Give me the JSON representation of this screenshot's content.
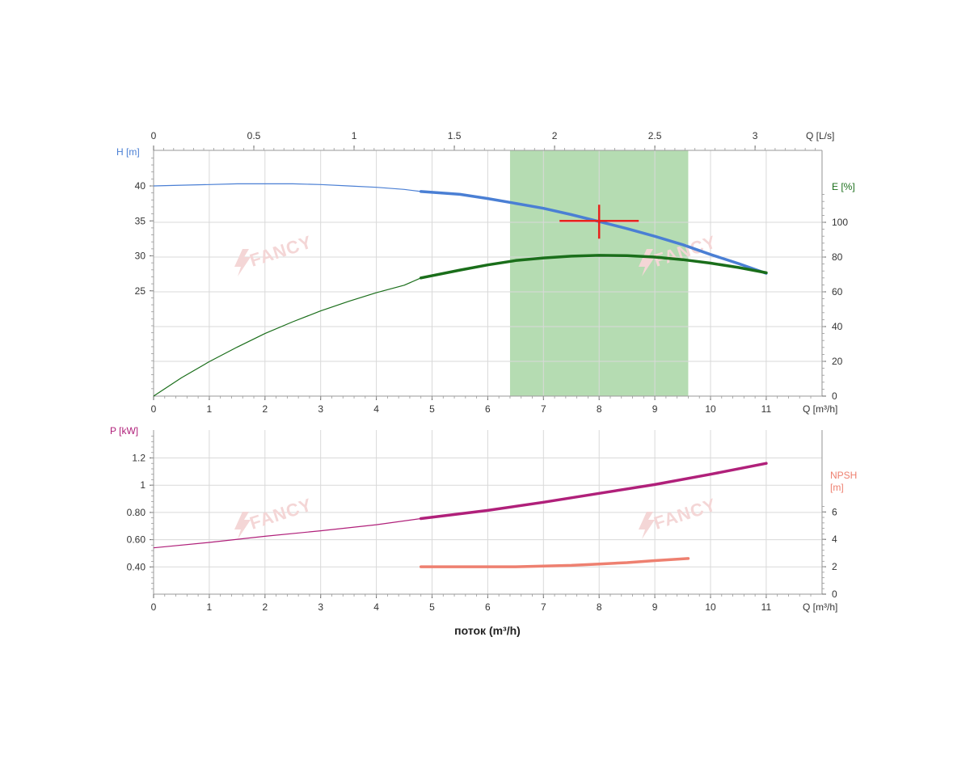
{
  "chart_data": [
    {
      "id": "head-efficiency",
      "type": "line",
      "x_axis_bottom": {
        "label": "Q [m³/h]",
        "range": [
          0,
          12
        ],
        "ticks": [
          0,
          1,
          2,
          3,
          4,
          5,
          6,
          7,
          8,
          9,
          10,
          11
        ]
      },
      "x_axis_top": {
        "label": "Q [L/s]",
        "range": [
          0,
          3.333
        ],
        "ticks": [
          0,
          0.5,
          1,
          1.5,
          2,
          2.5,
          3
        ]
      },
      "y_axis_left": {
        "label": "H [m]",
        "range": [
          10,
          45
        ],
        "ticks": [
          25,
          30,
          35,
          40
        ]
      },
      "y_axis_right": {
        "label": "E [%]",
        "range": [
          0,
          120
        ],
        "ticks": [
          0,
          20,
          40,
          60,
          80,
          100
        ]
      },
      "grid": true,
      "operating_region": {
        "x_from": 6.4,
        "x_to": 9.6
      },
      "duty_point": {
        "x": 8.0,
        "y": 35
      },
      "series": [
        {
          "axis": "left",
          "color": "#4a7fd4",
          "points": [
            [
              0,
              40.0
            ],
            [
              0.5,
              40.1
            ],
            [
              1,
              40.2
            ],
            [
              1.5,
              40.3
            ],
            [
              2,
              40.3
            ],
            [
              2.5,
              40.3
            ],
            [
              3,
              40.2
            ],
            [
              3.5,
              40.0
            ],
            [
              4,
              39.8
            ],
            [
              4.5,
              39.5
            ],
            [
              4.8,
              39.2
            ],
            [
              5.5,
              38.8
            ],
            [
              6,
              38.2
            ],
            [
              6.5,
              37.5
            ],
            [
              7,
              36.8
            ],
            [
              7.5,
              35.9
            ],
            [
              8,
              34.9
            ],
            [
              8.5,
              33.9
            ],
            [
              9,
              32.8
            ],
            [
              9.5,
              31.6
            ],
            [
              10,
              30.2
            ],
            [
              10.5,
              28.9
            ],
            [
              11,
              27.5
            ]
          ],
          "bold_from": 4.8
        },
        {
          "axis": "right",
          "color": "#1a6e1a",
          "points": [
            [
              0,
              0
            ],
            [
              0.5,
              10.5
            ],
            [
              1,
              19.8
            ],
            [
              1.5,
              28.2
            ],
            [
              2,
              36
            ],
            [
              2.5,
              42.8
            ],
            [
              3,
              49
            ],
            [
              3.5,
              54.5
            ],
            [
              4,
              59.5
            ],
            [
              4.5,
              63.8
            ],
            [
              4.8,
              68
            ],
            [
              5.5,
              72.5
            ],
            [
              6,
              75.5
            ],
            [
              6.5,
              78
            ],
            [
              7,
              79.5
            ],
            [
              7.5,
              80.5
            ],
            [
              8,
              81
            ],
            [
              8.5,
              80.8
            ],
            [
              9,
              80
            ],
            [
              9.5,
              78.5
            ],
            [
              10,
              76.5
            ],
            [
              10.5,
              74
            ],
            [
              11,
              71
            ]
          ],
          "bold_from": 4.8
        }
      ]
    },
    {
      "id": "power-npsh",
      "type": "line",
      "x_axis_bottom": {
        "label": "Q [m³/h]",
        "range": [
          0,
          12
        ],
        "ticks": [
          0,
          1,
          2,
          3,
          4,
          5,
          6,
          7,
          8,
          9,
          10,
          11
        ]
      },
      "y_axis_left": {
        "label": "P [kW]",
        "range": [
          0.2,
          1.4
        ],
        "ticks": [
          {
            "value": 0.4,
            "label": "0.40"
          },
          {
            "value": 0.6,
            "label": "0.60"
          },
          {
            "value": 0.8,
            "label": "0.80"
          },
          {
            "value": 1.0,
            "label": "1"
          },
          {
            "value": 1.2,
            "label": "1.2"
          }
        ]
      },
      "y_axis_right": {
        "label_line1": "NPSH",
        "label_line2": "[m]",
        "range": [
          0,
          12
        ],
        "ticks": [
          0,
          2,
          4,
          6
        ]
      },
      "grid": true,
      "series": [
        {
          "axis": "left",
          "color": "#b0207a",
          "points": [
            [
              0,
              0.54
            ],
            [
              1,
              0.58
            ],
            [
              2,
              0.625
            ],
            [
              3,
              0.665
            ],
            [
              4,
              0.71
            ],
            [
              4.8,
              0.755
            ],
            [
              6,
              0.815
            ],
            [
              7,
              0.875
            ],
            [
              8,
              0.94
            ],
            [
              9,
              1.005
            ],
            [
              10,
              1.08
            ],
            [
              11,
              1.16
            ]
          ],
          "bold_from": 4.8
        },
        {
          "axis": "right",
          "color": "#ee8070",
          "points": [
            [
              4.8,
              2.0
            ],
            [
              5.5,
              2.0
            ],
            [
              6,
              2.0
            ],
            [
              6.5,
              2.0
            ],
            [
              7,
              2.05
            ],
            [
              7.5,
              2.1
            ],
            [
              8,
              2.2
            ],
            [
              8.5,
              2.3
            ],
            [
              9,
              2.45
            ],
            [
              9.6,
              2.6
            ]
          ],
          "bold_from": 4.8
        }
      ]
    }
  ],
  "xlabel": "поток (m³/h)",
  "watermark": "FANCY",
  "colors": {
    "head_axis": "#4a7fd4",
    "efficiency_axis": "#1a6e1a",
    "power_axis": "#b0207a",
    "npsh_axis": "#ee8070",
    "region_fill": "#a8d6a4",
    "duty_marker": "#e8221c"
  }
}
